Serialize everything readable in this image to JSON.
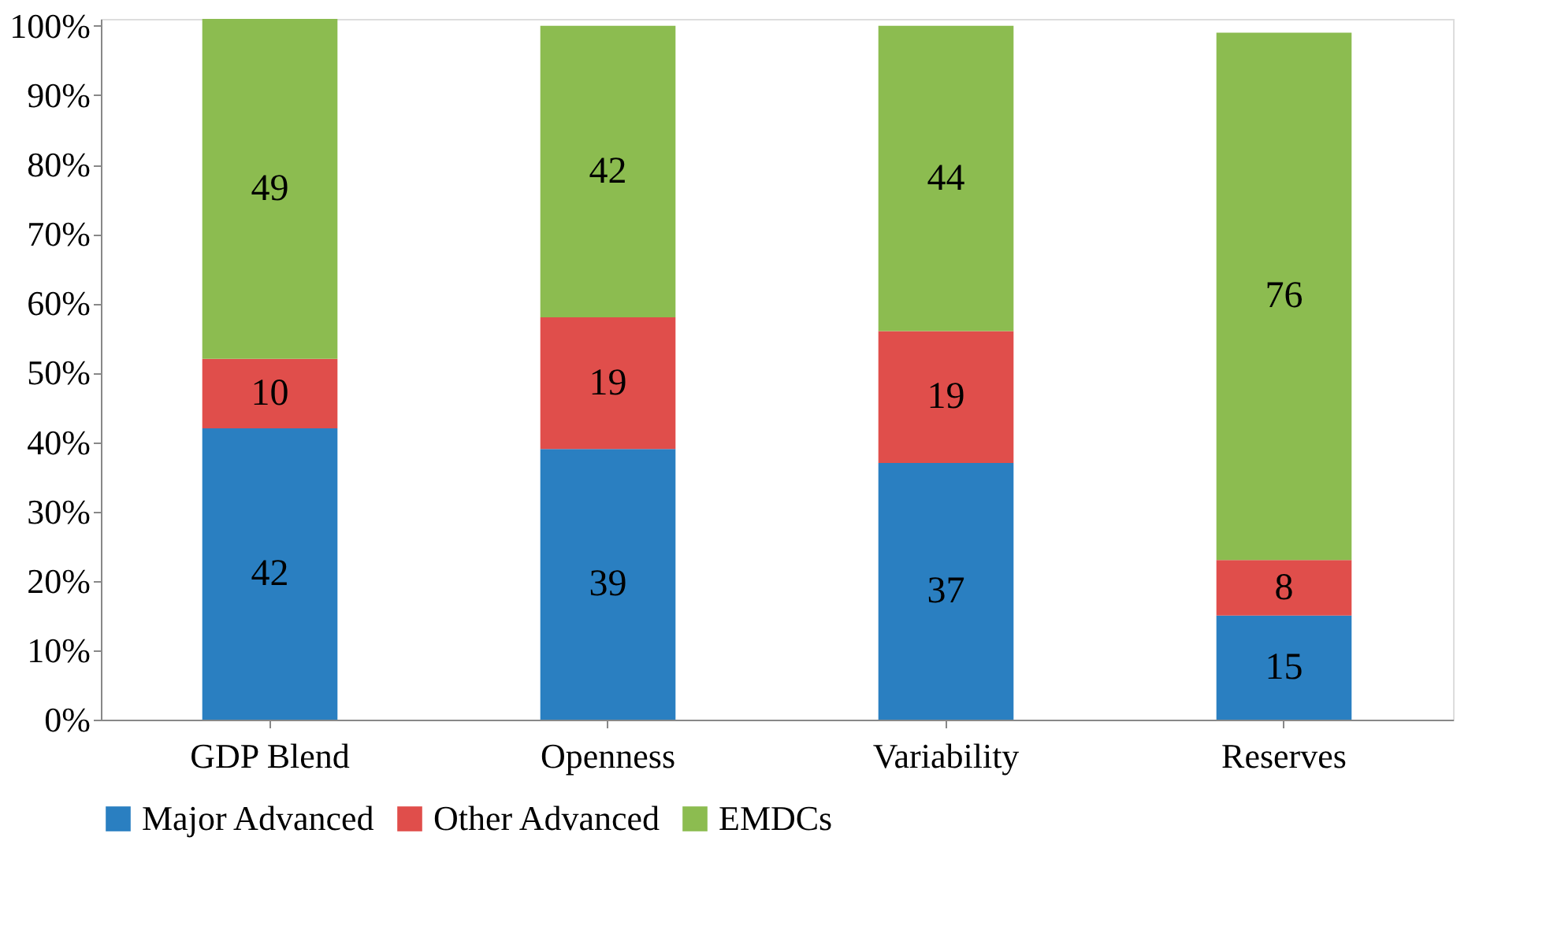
{
  "chart_data": {
    "type": "bar",
    "stacked": true,
    "data_labels": true,
    "categories": [
      "GDP Blend",
      "Openness",
      "Variability",
      "Reserves"
    ],
    "series": [
      {
        "name": "Major Advanced",
        "color": "#2a7fc1",
        "values": [
          42,
          39,
          37,
          15
        ]
      },
      {
        "name": "Other Advanced",
        "color": "#e04e4b",
        "values": [
          10,
          19,
          19,
          8
        ]
      },
      {
        "name": "EMDCs",
        "color": "#8cbc50",
        "values": [
          49,
          42,
          44,
          76
        ]
      }
    ],
    "ylim": [
      0,
      101
    ],
    "yticks": [
      {
        "value": 0,
        "label": "0%"
      },
      {
        "value": 10,
        "label": "10%"
      },
      {
        "value": 20,
        "label": "20%"
      },
      {
        "value": 30,
        "label": "30%"
      },
      {
        "value": 40,
        "label": "40%"
      },
      {
        "value": 50,
        "label": "50%"
      },
      {
        "value": 60,
        "label": "60%"
      },
      {
        "value": 70,
        "label": "70%"
      },
      {
        "value": 80,
        "label": "80%"
      },
      {
        "value": 90,
        "label": "90%"
      },
      {
        "value": 100,
        "label": "100%"
      }
    ],
    "grid": false,
    "legend": "bottom"
  }
}
